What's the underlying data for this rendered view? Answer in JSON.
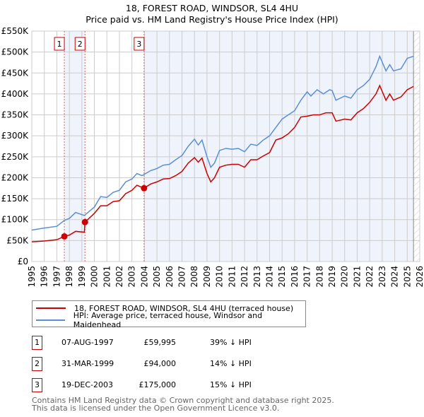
{
  "title": "18, FOREST ROAD, WINDSOR, SL4 4HU",
  "subtitle": "Price paid vs. HM Land Registry's House Price Index (HPI)",
  "colors": {
    "property": "#cc0000",
    "hpi": "#5b8fd4",
    "shade": "#eef3fc",
    "grid": "#cccccc"
  },
  "chart_data": {
    "type": "line",
    "title": "18, FOREST ROAD, WINDSOR, SL4 4HU — Price paid vs. HM Land Registry's House Price Index (HPI)",
    "xlim": [
      1995,
      2026
    ],
    "ylim": [
      0,
      550000
    ],
    "y_ticks": [
      0,
      50000,
      100000,
      150000,
      200000,
      250000,
      300000,
      350000,
      400000,
      450000,
      500000,
      550000
    ],
    "y_tick_labels": [
      "£0",
      "£50K",
      "£100K",
      "£150K",
      "£200K",
      "£250K",
      "£300K",
      "£350K",
      "£400K",
      "£450K",
      "£500K",
      "£550K"
    ],
    "x_ticks": [
      1995,
      1996,
      1997,
      1998,
      1999,
      2000,
      2001,
      2002,
      2003,
      2004,
      2005,
      2006,
      2007,
      2008,
      2009,
      2010,
      2011,
      2012,
      2013,
      2014,
      2015,
      2016,
      2017,
      2018,
      2019,
      2020,
      2021,
      2022,
      2023,
      2024,
      2025,
      2026
    ],
    "grid": true,
    "legend_placement": "bottom",
    "hatched_after": 2025.5,
    "series": [
      {
        "name": "18, FOREST ROAD, WINDSOR, SL4 4HU (terraced house)",
        "x": [
          1995,
          1996,
          1997,
          1997.6,
          1998,
          1998.5,
          1999.2,
          1999.25,
          2000,
          2000.5,
          2001,
          2001.5,
          2002,
          2002.5,
          2003,
          2003.4,
          2003.97,
          2004.5,
          2005,
          2005.5,
          2006,
          2006.5,
          2007,
          2007.5,
          2008,
          2008.3,
          2008.6,
          2009,
          2009.3,
          2009.6,
          2010,
          2010.5,
          2011,
          2011.5,
          2012,
          2012.5,
          2013,
          2013.5,
          2014,
          2014.5,
          2015,
          2015.5,
          2016,
          2016.5,
          2017,
          2017.5,
          2018,
          2018.5,
          2019,
          2019.3,
          2020,
          2020.5,
          2021,
          2021.5,
          2022,
          2022.5,
          2022.8,
          2023.3,
          2023.6,
          2023.9,
          2024.5,
          2025,
          2025.5
        ],
        "y": [
          47000,
          49000,
          52000,
          60000,
          63000,
          72000,
          70000,
          94000,
          115000,
          133000,
          133000,
          143000,
          145000,
          162000,
          170000,
          182000,
          175000,
          185000,
          190000,
          197000,
          198000,
          205000,
          215000,
          235000,
          248000,
          237000,
          247000,
          210000,
          190000,
          200000,
          225000,
          230000,
          232000,
          232000,
          225000,
          243000,
          243000,
          252000,
          260000,
          290000,
          295000,
          305000,
          320000,
          345000,
          347000,
          350000,
          350000,
          355000,
          355000,
          335000,
          340000,
          338000,
          355000,
          365000,
          380000,
          400000,
          420000,
          385000,
          400000,
          385000,
          393000,
          410000,
          418000
        ]
      },
      {
        "name": "HPI: Average price, terraced house, Windsor and Maidenhead",
        "x": [
          1995,
          1996,
          1997,
          1997.6,
          1998,
          1998.5,
          1999.2,
          2000,
          2000.5,
          2001,
          2001.5,
          2002,
          2002.5,
          2003,
          2003.4,
          2003.8,
          2004.5,
          2005,
          2005.5,
          2006,
          2006.5,
          2007,
          2007.5,
          2008,
          2008.3,
          2008.6,
          2009,
          2009.3,
          2009.6,
          2010,
          2010.5,
          2011,
          2011.5,
          2012,
          2012.5,
          2013,
          2013.5,
          2014,
          2014.5,
          2015,
          2015.5,
          2016,
          2016.5,
          2017,
          2017.3,
          2017.8,
          2018.3,
          2018.8,
          2019,
          2019.3,
          2020,
          2020.5,
          2021,
          2021.5,
          2022,
          2022.5,
          2022.8,
          2023.3,
          2023.6,
          2023.9,
          2024.5,
          2025,
          2025.5
        ],
        "y": [
          75000,
          80000,
          84000,
          98000,
          103000,
          117000,
          110000,
          130000,
          155000,
          153000,
          165000,
          170000,
          190000,
          197000,
          210000,
          205000,
          217000,
          222000,
          230000,
          232000,
          243000,
          253000,
          275000,
          292000,
          278000,
          290000,
          250000,
          225000,
          235000,
          265000,
          270000,
          268000,
          270000,
          262000,
          280000,
          277000,
          290000,
          300000,
          320000,
          340000,
          350000,
          360000,
          385000,
          405000,
          395000,
          410000,
          400000,
          410000,
          408000,
          385000,
          395000,
          390000,
          410000,
          420000,
          435000,
          465000,
          490000,
          455000,
          470000,
          455000,
          460000,
          485000,
          490000
        ]
      }
    ],
    "sales": [
      {
        "label": "1",
        "x": 1997.6,
        "y": 59995
      },
      {
        "label": "2",
        "x": 1999.25,
        "y": 94000
      },
      {
        "label": "3",
        "x": 2003.97,
        "y": 175000
      }
    ]
  },
  "legend": {
    "property": "18, FOREST ROAD, WINDSOR, SL4 4HU (terraced house)",
    "hpi": "HPI: Average price, terraced house, Windsor and Maidenhead"
  },
  "transactions": [
    {
      "num": "1",
      "date": "07-AUG-1997",
      "price": "£59,995",
      "hpi": "39% ↓ HPI"
    },
    {
      "num": "2",
      "date": "31-MAR-1999",
      "price": "£94,000",
      "hpi": "14% ↓ HPI"
    },
    {
      "num": "3",
      "date": "19-DEC-2003",
      "price": "£175,000",
      "hpi": "15% ↓ HPI"
    }
  ],
  "footer": {
    "line1": "Contains HM Land Registry data © Crown copyright and database right 2025.",
    "line2": "This data is licensed under the Open Government Licence v3.0."
  }
}
